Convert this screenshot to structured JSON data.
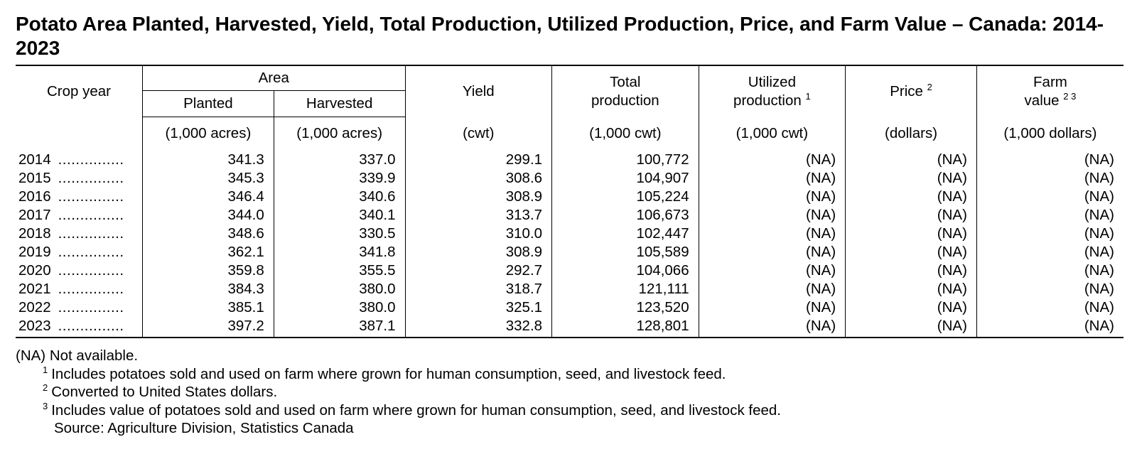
{
  "title": "Potato Area Planted, Harvested, Yield, Total Production, Utilized Production, Price, and Farm Value – Canada: 2014-2023",
  "header": {
    "crop_year": "Crop year",
    "area": "Area",
    "planted": "Planted",
    "harvested": "Harvested",
    "yield": "Yield",
    "total_line1": "Total",
    "total_line2": "production",
    "utilized_line1": "Utilized",
    "utilized_line2": "production",
    "utilized_sup": "1",
    "price": "Price",
    "price_sup": "2",
    "farm_line1": "Farm",
    "farm_line2": "value",
    "farm_sup": "2 3"
  },
  "units": [
    "(1,000 acres)",
    "(1,000 acres)",
    "(cwt)",
    "(1,000 cwt)",
    "(1,000 cwt)",
    "(dollars)",
    "(1,000 dollars)"
  ],
  "dot_leader": "...............",
  "rows": [
    {
      "year": "2014",
      "planted": "341.3",
      "harvested": "337.0",
      "yield": "299.1",
      "total": "100,772",
      "utilized": "(NA)",
      "price": "(NA)",
      "farm_value": "(NA)"
    },
    {
      "year": "2015",
      "planted": "345.3",
      "harvested": "339.9",
      "yield": "308.6",
      "total": "104,907",
      "utilized": "(NA)",
      "price": "(NA)",
      "farm_value": "(NA)"
    },
    {
      "year": "2016",
      "planted": "346.4",
      "harvested": "340.6",
      "yield": "308.9",
      "total": "105,224",
      "utilized": "(NA)",
      "price": "(NA)",
      "farm_value": "(NA)"
    },
    {
      "year": "2017",
      "planted": "344.0",
      "harvested": "340.1",
      "yield": "313.7",
      "total": "106,673",
      "utilized": "(NA)",
      "price": "(NA)",
      "farm_value": "(NA)"
    },
    {
      "year": "2018",
      "planted": "348.6",
      "harvested": "330.5",
      "yield": "310.0",
      "total": "102,447",
      "utilized": "(NA)",
      "price": "(NA)",
      "farm_value": "(NA)"
    },
    {
      "year": "2019",
      "planted": "362.1",
      "harvested": "341.8",
      "yield": "308.9",
      "total": "105,589",
      "utilized": "(NA)",
      "price": "(NA)",
      "farm_value": "(NA)"
    },
    {
      "year": "2020",
      "planted": "359.8",
      "harvested": "355.5",
      "yield": "292.7",
      "total": "104,066",
      "utilized": "(NA)",
      "price": "(NA)",
      "farm_value": "(NA)"
    },
    {
      "year": "2021",
      "planted": "384.3",
      "harvested": "380.0",
      "yield": "318.7",
      "total": "121,111",
      "utilized": "(NA)",
      "price": "(NA)",
      "farm_value": "(NA)"
    },
    {
      "year": "2022",
      "planted": "385.1",
      "harvested": "380.0",
      "yield": "325.1",
      "total": "123,520",
      "utilized": "(NA)",
      "price": "(NA)",
      "farm_value": "(NA)"
    },
    {
      "year": "2023",
      "planted": "397.2",
      "harvested": "387.1",
      "yield": "332.8",
      "total": "128,801",
      "utilized": "(NA)",
      "price": "(NA)",
      "farm_value": "(NA)"
    }
  ],
  "notes": {
    "na": "(NA) Not available.",
    "fn1_mark": "1",
    "fn1": "Includes potatoes sold and used on farm where grown for human consumption, seed, and livestock feed.",
    "fn2_mark": "2",
    "fn2": "Converted to United States dollars.",
    "fn3_mark": "3",
    "fn3": "Includes value of potatoes sold and used on farm where grown for human consumption, seed, and livestock feed.",
    "source": "Source:  Agriculture Division, Statistics Canada"
  }
}
